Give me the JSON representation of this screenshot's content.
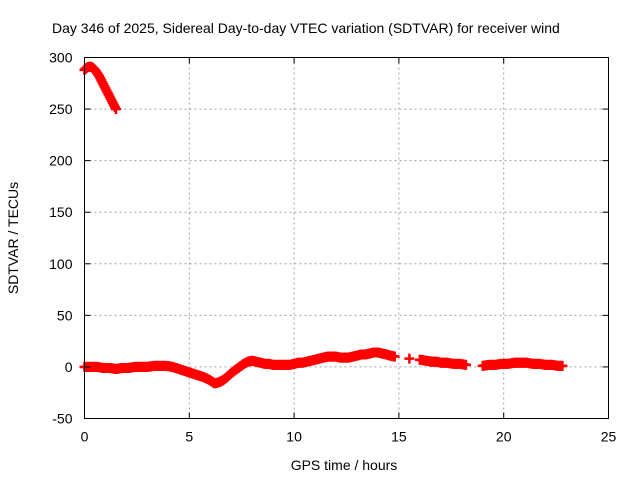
{
  "chart_data": {
    "type": "scatter",
    "title": "Day 346 of 2025, Sidereal Day-to-day VTEC variation (SDTVAR) for receiver wind",
    "xlabel": "GPS time / hours",
    "ylabel": "SDTVAR / TECUs",
    "xlim": [
      0,
      25
    ],
    "ylim": [
      -50,
      300
    ],
    "xticks": [
      0,
      5,
      10,
      15,
      20,
      25
    ],
    "yticks": [
      -50,
      0,
      50,
      100,
      150,
      200,
      250,
      300
    ],
    "grid": true,
    "marker": "+",
    "color": "#ff0000",
    "series": [
      {
        "name": "SDTVAR",
        "x": [
          0.0,
          0.1,
          0.2,
          0.3,
          0.4,
          0.5,
          0.6,
          0.7,
          0.8,
          0.9,
          1.0,
          1.1,
          1.2,
          1.3,
          1.4,
          1.5,
          0.0,
          0.3,
          0.6,
          0.9,
          1.2,
          1.5,
          1.8,
          2.1,
          2.4,
          2.7,
          3.0,
          3.3,
          3.6,
          3.9,
          4.2,
          4.5,
          4.8,
          5.1,
          5.4,
          5.7,
          6.0,
          6.2,
          6.4,
          6.6,
          6.8,
          7.0,
          7.2,
          7.4,
          7.6,
          7.8,
          8.0,
          8.2,
          8.4,
          8.6,
          8.8,
          9.0,
          9.2,
          9.4,
          9.6,
          9.8,
          10.0,
          10.2,
          10.4,
          10.6,
          10.8,
          11.0,
          11.2,
          11.4,
          11.6,
          11.8,
          12.0,
          12.2,
          12.4,
          12.6,
          12.8,
          13.0,
          13.2,
          13.4,
          13.6,
          13.8,
          14.0,
          14.2,
          14.4,
          14.6,
          14.8,
          15.5,
          16.0,
          16.3,
          16.6,
          16.8,
          17.0,
          17.3,
          17.6,
          17.9,
          18.2,
          19.0,
          19.3,
          19.6,
          19.9,
          20.2,
          20.5,
          20.8,
          21.1,
          21.4,
          21.7,
          22.0,
          22.3,
          22.6,
          22.8
        ],
        "y": [
          288,
          290,
          291,
          291,
          290,
          288,
          285,
          282,
          278,
          274,
          270,
          266,
          262,
          258,
          254,
          250,
          0,
          0,
          0,
          -1,
          -1,
          -2,
          -1,
          -1,
          0,
          0,
          0,
          1,
          1,
          1,
          0,
          -2,
          -4,
          -6,
          -8,
          -10,
          -13,
          -16,
          -15,
          -13,
          -10,
          -6,
          -3,
          0,
          3,
          5,
          6,
          5,
          4,
          3,
          3,
          2,
          2,
          2,
          2,
          2,
          3,
          4,
          4,
          5,
          6,
          7,
          8,
          9,
          10,
          10,
          10,
          9,
          9,
          9,
          10,
          11,
          12,
          12,
          13,
          14,
          14,
          13,
          12,
          11,
          10,
          8,
          7,
          6,
          5,
          5,
          4,
          4,
          3,
          3,
          2,
          1,
          2,
          2,
          3,
          3,
          4,
          4,
          4,
          3,
          3,
          2,
          2,
          1,
          1
        ]
      }
    ]
  }
}
